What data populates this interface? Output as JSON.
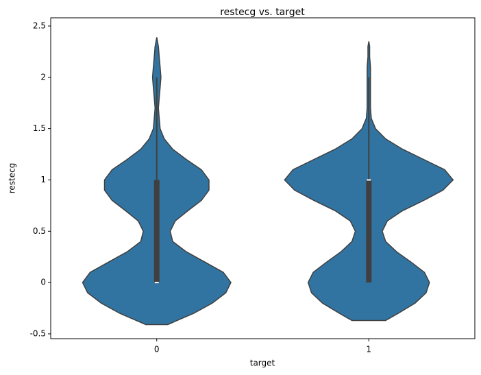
{
  "chart_data": {
    "type": "violin",
    "title": "restecg vs. target",
    "x_label": "target",
    "y_label": "restecg",
    "categories": [
      "0",
      "1"
    ],
    "color": "#3274a1",
    "line_color": "#3f3f3f",
    "ylim": [
      -0.547,
      2.58
    ],
    "yticks": [
      -0.5,
      0.0,
      0.5,
      1.0,
      1.5,
      2.0,
      2.5
    ],
    "violins": [
      {
        "y": [
          -0.41,
          -0.3,
          -0.2,
          -0.1,
          0,
          0.1,
          0.2,
          0.3,
          0.4,
          0.5,
          0.6,
          0.7,
          0.8,
          0.9,
          1.0,
          1.1,
          1.2,
          1.3,
          1.4,
          1.5,
          1.6,
          1.7,
          1.8,
          1.9,
          2.0,
          2.1,
          2.2,
          2.3,
          2.39
        ],
        "density": [
          0.13,
          0.44,
          0.66,
          0.82,
          0.88,
          0.79,
          0.57,
          0.35,
          0.19,
          0.16,
          0.22,
          0.37,
          0.53,
          0.62,
          0.62,
          0.53,
          0.35,
          0.19,
          0.09,
          0.04,
          0.03,
          0.02,
          0.03,
          0.04,
          0.05,
          0.04,
          0.03,
          0.02,
          0
        ],
        "q1": 0,
        "median": 0,
        "q3": 1,
        "whisker_low": 0,
        "whisker_high": 2
      },
      {
        "y": [
          -0.37,
          -0.3,
          -0.2,
          -0.1,
          0,
          0.1,
          0.2,
          0.3,
          0.4,
          0.5,
          0.6,
          0.7,
          0.8,
          0.9,
          1.0,
          1.1,
          1.2,
          1.3,
          1.4,
          1.5,
          1.6,
          1.7,
          1.8,
          1.9,
          2.0,
          2.1,
          2.2,
          2.3,
          2.35
        ],
        "density": [
          0.2,
          0.35,
          0.55,
          0.68,
          0.72,
          0.66,
          0.5,
          0.33,
          0.2,
          0.16,
          0.22,
          0.4,
          0.65,
          0.88,
          1.0,
          0.9,
          0.65,
          0.4,
          0.2,
          0.08,
          0.03,
          0.02,
          0.02,
          0.02,
          0.02,
          0.02,
          0.01,
          0.01,
          0
        ],
        "q1": 0,
        "median": 1,
        "q3": 1,
        "whisker_low": 0,
        "whisker_high": 2
      }
    ]
  }
}
